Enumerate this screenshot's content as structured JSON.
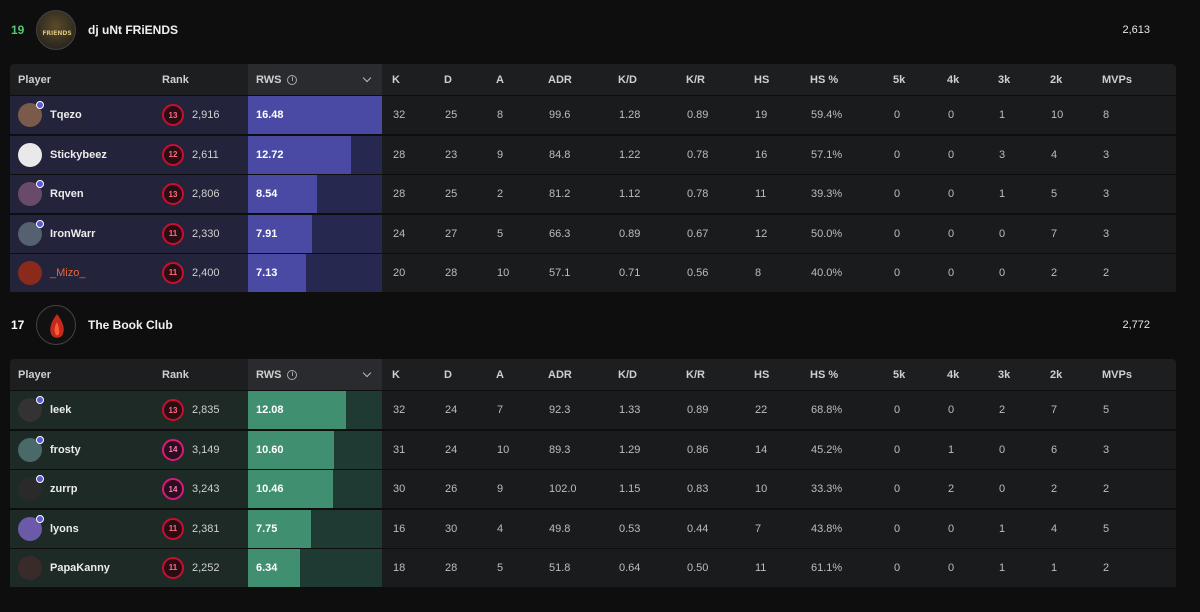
{
  "teams": [
    {
      "score": "19",
      "score_color": "#4ecb71",
      "name": "dj uNt FRiENDS",
      "rating": "2,613",
      "headers": [
        "Player",
        "Rank",
        "RWS",
        "K",
        "D",
        "A",
        "ADR",
        "K/D",
        "K/R",
        "HS",
        "HS %",
        "5k",
        "4k",
        "3k",
        "2k",
        "MVPs"
      ],
      "players": [
        {
          "name": "Tqezo",
          "rank_level": "13",
          "rank": "2,916",
          "rws": "16.48",
          "rws_value": 16.48,
          "k": "32",
          "d": "25",
          "a": "8",
          "adr": "99.6",
          "kd": "1.28",
          "kr": "0.89",
          "hs": "19",
          "hs_pct": "59.4%",
          "k5": "0",
          "k4": "0",
          "k3": "1",
          "k2": "10",
          "mvps": "8",
          "badge": true
        },
        {
          "name": "Stickybeez",
          "rank_level": "12",
          "rank": "2,611",
          "rws": "12.72",
          "rws_value": 12.72,
          "k": "28",
          "d": "23",
          "a": "9",
          "adr": "84.8",
          "kd": "1.22",
          "kr": "0.78",
          "hs": "16",
          "hs_pct": "57.1%",
          "k5": "0",
          "k4": "0",
          "k3": "3",
          "k2": "4",
          "mvps": "3",
          "badge": false
        },
        {
          "name": "Rqven",
          "rank_level": "13",
          "rank": "2,806",
          "rws": "8.54",
          "rws_value": 8.54,
          "k": "28",
          "d": "25",
          "a": "2",
          "adr": "81.2",
          "kd": "1.12",
          "kr": "0.78",
          "hs": "11",
          "hs_pct": "39.3%",
          "k5": "0",
          "k4": "0",
          "k3": "1",
          "k2": "5",
          "mvps": "3",
          "badge": true
        },
        {
          "name": "IronWarr",
          "rank_level": "11",
          "rank": "2,330",
          "rws": "7.91",
          "rws_value": 7.91,
          "k": "24",
          "d": "27",
          "a": "5",
          "adr": "66.3",
          "kd": "0.89",
          "kr": "0.67",
          "hs": "12",
          "hs_pct": "50.0%",
          "k5": "0",
          "k4": "0",
          "k3": "0",
          "k2": "7",
          "mvps": "3",
          "badge": true
        },
        {
          "name": "_Mizo_",
          "rank_level": "11",
          "rank": "2,400",
          "rws": "7.13",
          "rws_value": 7.13,
          "k": "20",
          "d": "28",
          "a": "10",
          "adr": "57.1",
          "kd": "0.71",
          "kr": "0.56",
          "hs": "8",
          "hs_pct": "40.0%",
          "k5": "0",
          "k4": "0",
          "k3": "0",
          "k2": "2",
          "mvps": "2",
          "badge": false,
          "orange": true
        }
      ]
    },
    {
      "score": "17",
      "score_color": "#ffffff",
      "name": "The Book Club",
      "rating": "2,772",
      "headers": [
        "Player",
        "Rank",
        "RWS",
        "K",
        "D",
        "A",
        "ADR",
        "K/D",
        "K/R",
        "HS",
        "HS %",
        "5k",
        "4k",
        "3k",
        "2k",
        "MVPs"
      ],
      "players": [
        {
          "name": "leek",
          "rank_level": "13",
          "rank": "2,835",
          "rws": "12.08",
          "rws_value": 12.08,
          "k": "32",
          "d": "24",
          "a": "7",
          "adr": "92.3",
          "kd": "1.33",
          "kr": "0.89",
          "hs": "22",
          "hs_pct": "68.8%",
          "k5": "0",
          "k4": "0",
          "k3": "2",
          "k2": "7",
          "mvps": "5",
          "badge": true
        },
        {
          "name": "frosty",
          "rank_level": "14",
          "rank": "3,149",
          "rws": "10.60",
          "rws_value": 10.6,
          "k": "31",
          "d": "24",
          "a": "10",
          "adr": "89.3",
          "kd": "1.29",
          "kr": "0.86",
          "hs": "14",
          "hs_pct": "45.2%",
          "k5": "0",
          "k4": "1",
          "k3": "0",
          "k2": "6",
          "mvps": "3",
          "badge": true
        },
        {
          "name": "zurrp",
          "rank_level": "14",
          "rank": "3,243",
          "rws": "10.46",
          "rws_value": 10.46,
          "k": "30",
          "d": "26",
          "a": "9",
          "adr": "102.0",
          "kd": "1.15",
          "kr": "0.83",
          "hs": "10",
          "hs_pct": "33.3%",
          "k5": "0",
          "k4": "2",
          "k3": "0",
          "k2": "2",
          "mvps": "2",
          "badge": true
        },
        {
          "name": "lyons",
          "rank_level": "11",
          "rank": "2,381",
          "rws": "7.75",
          "rws_value": 7.75,
          "k": "16",
          "d": "30",
          "a": "4",
          "adr": "49.8",
          "kd": "0.53",
          "kr": "0.44",
          "hs": "7",
          "hs_pct": "43.8%",
          "k5": "0",
          "k4": "0",
          "k3": "1",
          "k2": "4",
          "mvps": "5",
          "badge": true
        },
        {
          "name": "PapaKanny",
          "rank_level": "11",
          "rank": "2,252",
          "rws": "6.34",
          "rws_value": 6.34,
          "k": "18",
          "d": "28",
          "a": "5",
          "adr": "51.8",
          "kd": "0.64",
          "kr": "0.50",
          "hs": "11",
          "hs_pct": "61.1%",
          "k5": "0",
          "k4": "0",
          "k3": "1",
          "k2": "1",
          "mvps": "2",
          "badge": false
        }
      ]
    }
  ],
  "icons": {
    "info": "info-icon",
    "sort": "chevron-down-icon"
  },
  "rws_scale_max": 16.48
}
